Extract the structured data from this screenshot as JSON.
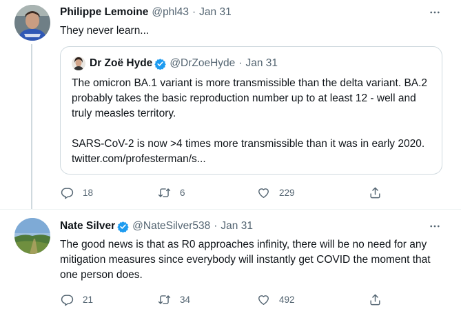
{
  "tweets": [
    {
      "author": {
        "name": "Philippe Lemoine",
        "handle": "@phl43",
        "verified": false
      },
      "date": "Jan 31",
      "text": "They never learn...",
      "quote": {
        "author": {
          "name": "Dr Zoë Hyde",
          "handle": "@DrZoeHyde",
          "verified": true
        },
        "date": "Jan 31",
        "paragraphs": [
          "The omicron BA.1 variant is more transmissible than the delta variant. BA.2 probably takes the basic reproduction number up to at least 12 - well and truly measles territory.",
          "SARS-CoV-2 is now >4 times more transmissible than it was in early 2020. twitter.com/profesterman/s..."
        ]
      },
      "stats": {
        "replies": "18",
        "retweets": "6",
        "likes": "229"
      }
    },
    {
      "author": {
        "name": "Nate Silver",
        "handle": "@NateSilver538",
        "verified": true
      },
      "date": "Jan 31",
      "text": "The good news is that as R0 approaches infinity, there will be no need for any mitigation measures since everybody will instantly get COVID the moment that one person does.",
      "stats": {
        "replies": "21",
        "retweets": "34",
        "likes": "492"
      }
    }
  ],
  "separator": "·",
  "icons": {
    "more": "more-dots-icon",
    "reply": "reply-icon",
    "retweet": "retweet-icon",
    "like": "heart-icon",
    "share": "share-icon",
    "verified": "verified-badge-icon"
  },
  "colors": {
    "verified": "#1d9bf0",
    "secondary_text": "#536471",
    "border": "#cfd9de",
    "thread_line": "#cfd9de"
  }
}
